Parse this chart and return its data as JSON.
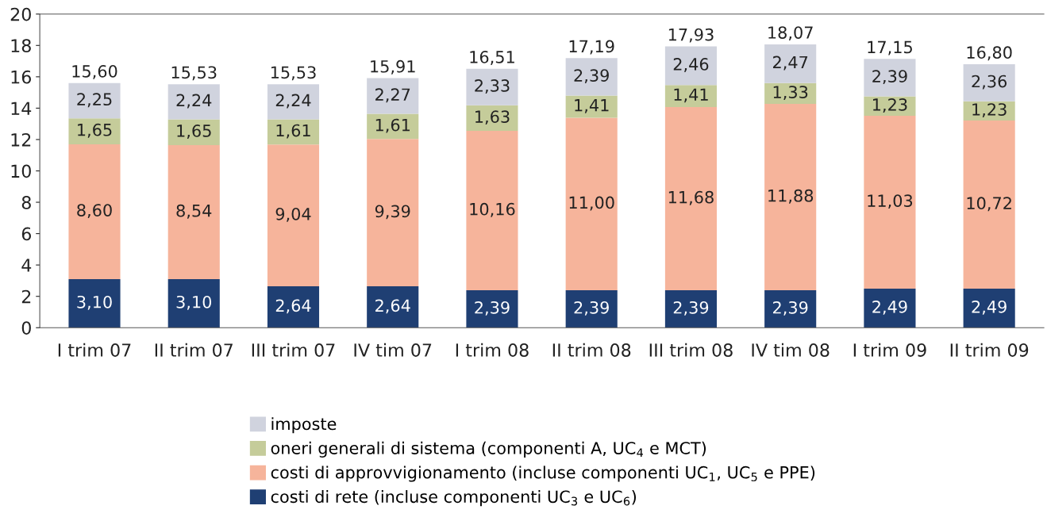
{
  "chart_data": {
    "type": "bar",
    "stacked": true,
    "categories": [
      "I trim 07",
      "II trim 07",
      "III trim 07",
      "IV tim 07",
      "I trim 08",
      "II trim 08",
      "III trim 08",
      "IV tim 08",
      "I trim 09",
      "II trim 09"
    ],
    "series": [
      {
        "name": "costi di rete (incluse componenti UC$_{3}$ e UC$_{6}$)",
        "color": "#1f3f73",
        "values": [
          3.1,
          3.1,
          2.64,
          2.64,
          2.39,
          2.39,
          2.39,
          2.39,
          2.49,
          2.49
        ],
        "value_labels": [
          "3,10",
          "3,10",
          "2,64",
          "2,64",
          "2,39",
          "2,39",
          "2,39",
          "2,39",
          "2,49",
          "2,49"
        ]
      },
      {
        "name": "costi di approvvigionamento (incluse componenti UC$_{1}$, UC$_{5}$ e PPE)",
        "color": "#f6b49b",
        "values": [
          8.6,
          8.54,
          9.04,
          9.39,
          10.16,
          11.0,
          11.68,
          11.88,
          11.03,
          10.72
        ],
        "value_labels": [
          "8,60",
          "8,54",
          "9,04",
          "9,39",
          "10,16",
          "11,00",
          "11,68",
          "11,88",
          "11,03",
          "10,72"
        ]
      },
      {
        "name": "oneri generali di sistema (componenti A, UC$_{4}$ e MCT)",
        "color": "#c5cc9a",
        "values": [
          1.65,
          1.65,
          1.61,
          1.61,
          1.63,
          1.41,
          1.41,
          1.33,
          1.23,
          1.23
        ],
        "value_labels": [
          "1,65",
          "1,65",
          "1,61",
          "1,61",
          "1,63",
          "1,41",
          "1,41",
          "1,33",
          "1,23",
          "1,23"
        ]
      },
      {
        "name": "imposte",
        "color": "#d0d3de",
        "values": [
          2.25,
          2.24,
          2.24,
          2.27,
          2.33,
          2.39,
          2.46,
          2.47,
          2.39,
          2.36
        ],
        "value_labels": [
          "2,25",
          "2,24",
          "2,24",
          "2,27",
          "2,33",
          "2,39",
          "2,46",
          "2,47",
          "2,39",
          "2,36"
        ]
      }
    ],
    "totals": [
      "15,60",
      "15,53",
      "15,53",
      "15,91",
      "16,51",
      "17,19",
      "17,93",
      "18,07",
      "17,15",
      "16,80"
    ],
    "ylim": [
      0,
      20
    ],
    "yticks": [
      0,
      2,
      4,
      6,
      8,
      10,
      12,
      14,
      16,
      18,
      20
    ],
    "grid": false,
    "legend": "bottom"
  }
}
